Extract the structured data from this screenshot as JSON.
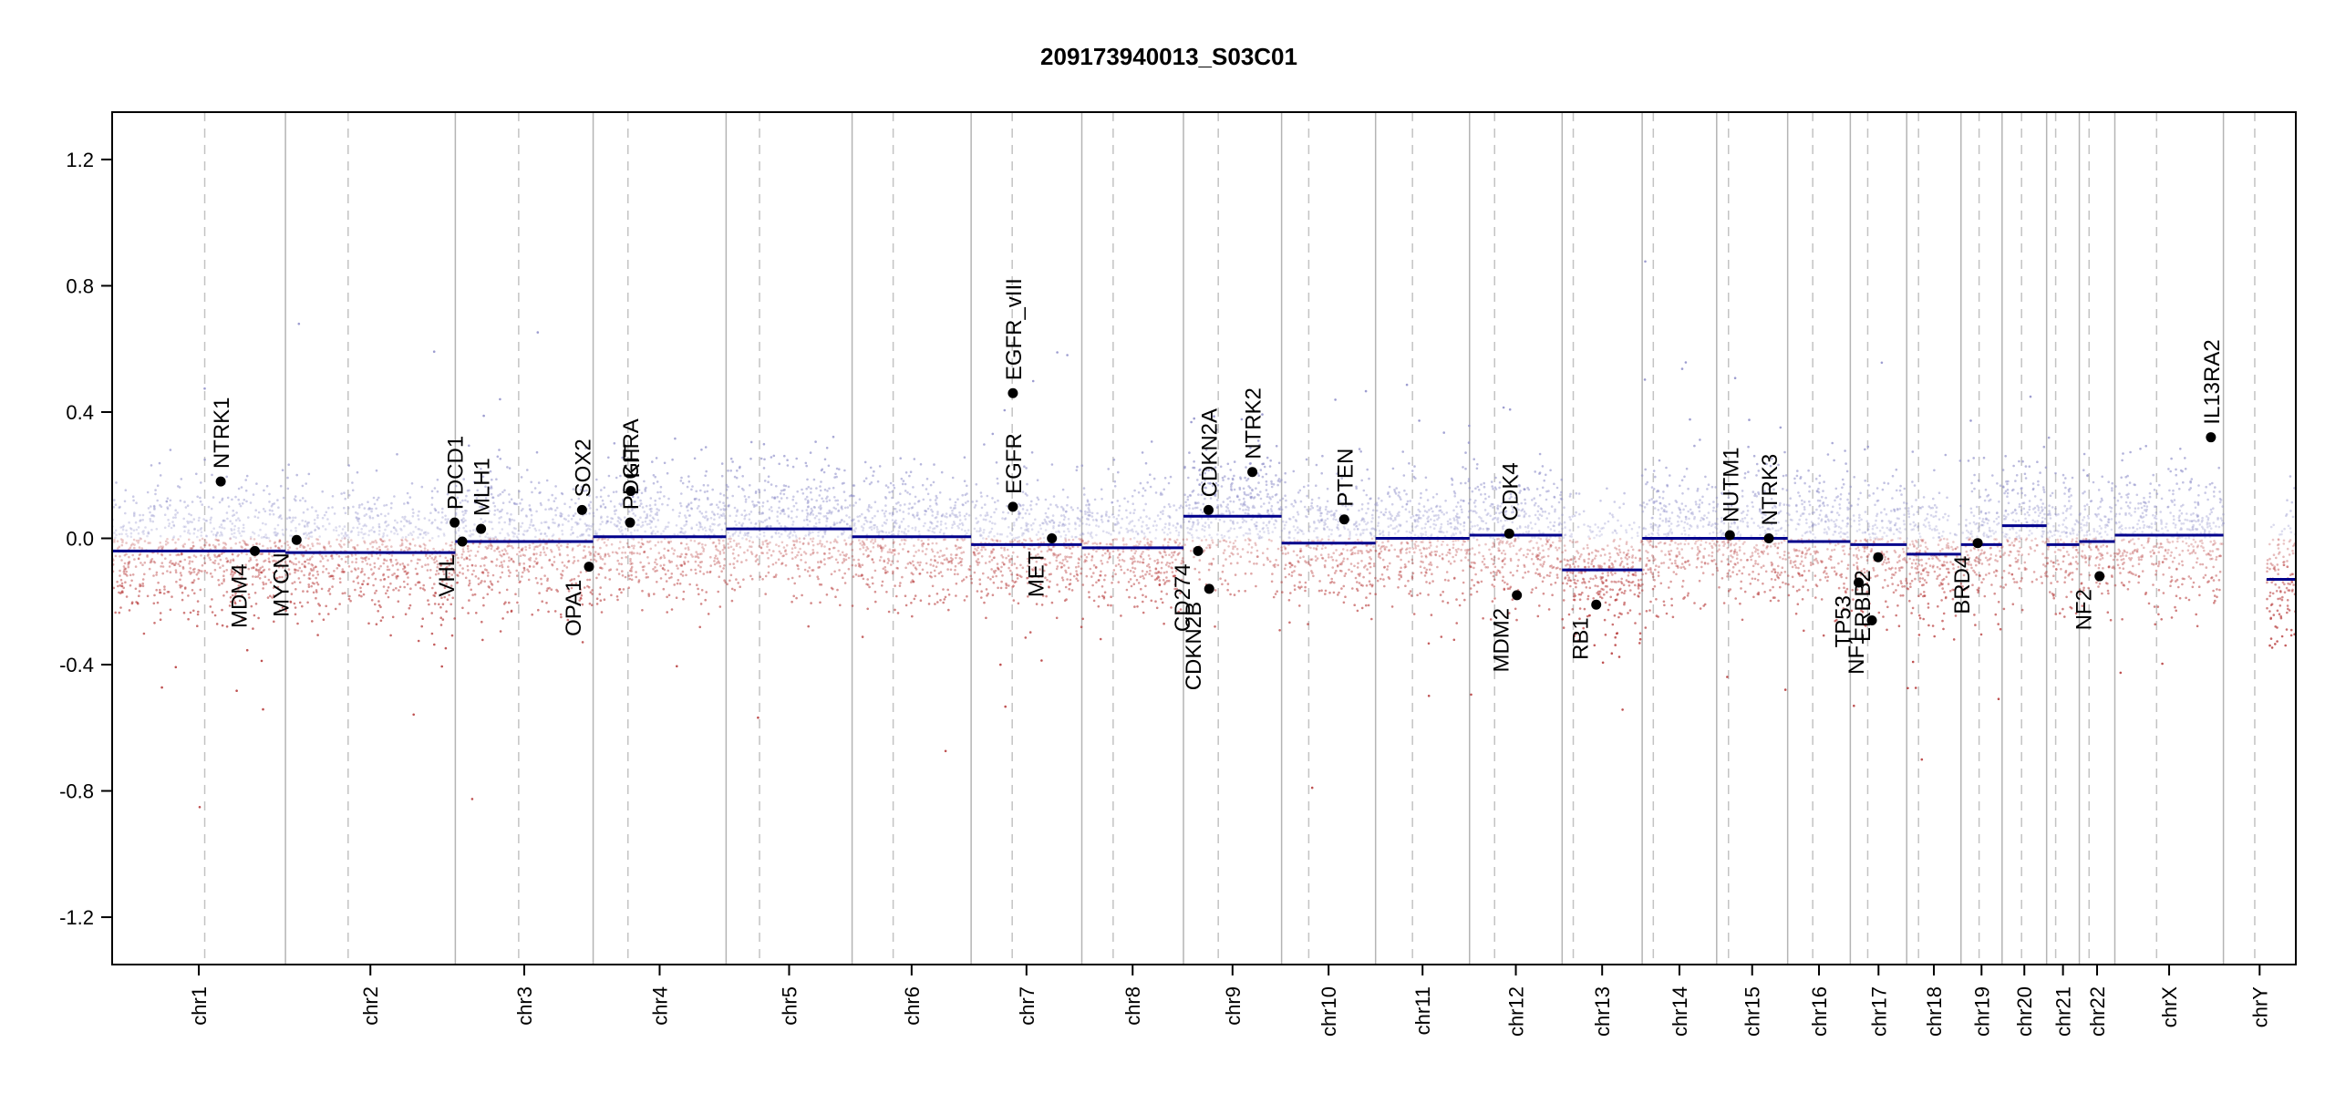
{
  "chart_data": {
    "type": "scatter",
    "title": "209173940013_S03C01",
    "xlabel": "",
    "ylabel": "",
    "ylim": [
      -1.35,
      1.35
    ],
    "xlim": [
      0,
      3137
    ],
    "y_ticks": [
      "1.2",
      "0.8",
      "0.4",
      "0.0",
      "-0.4",
      "-0.8",
      "-1.2"
    ],
    "y_tick_values": [
      1.2,
      0.8,
      0.4,
      0.0,
      -0.4,
      -0.8,
      -1.2
    ],
    "grid": false,
    "colors": {
      "segment": "#00008b",
      "gain_probe": "#8c8cc8",
      "loss_probe": "#b43232",
      "gene_point": "#000000"
    },
    "chromosomes": [
      {
        "name": "chr1",
        "start": 0,
        "end": 249,
        "centromere": 133
      },
      {
        "name": "chr2",
        "start": 249,
        "end": 493,
        "centromere": 339
      },
      {
        "name": "chr3",
        "start": 493,
        "end": 691,
        "centromere": 584
      },
      {
        "name": "chr4",
        "start": 691,
        "end": 882,
        "centromere": 741
      },
      {
        "name": "chr5",
        "start": 882,
        "end": 1063,
        "centromere": 930
      },
      {
        "name": "chr6",
        "start": 1063,
        "end": 1234,
        "centromere": 1122
      },
      {
        "name": "chr7",
        "start": 1234,
        "end": 1393,
        "centromere": 1293
      },
      {
        "name": "chr8",
        "start": 1393,
        "end": 1539,
        "centromere": 1438
      },
      {
        "name": "chr9",
        "start": 1539,
        "end": 1680,
        "centromere": 1589
      },
      {
        "name": "chr10",
        "start": 1680,
        "end": 1815,
        "centromere": 1719
      },
      {
        "name": "chr11",
        "start": 1815,
        "end": 1950,
        "centromere": 1868
      },
      {
        "name": "chr12",
        "start": 1950,
        "end": 2083,
        "centromere": 1986
      },
      {
        "name": "chr13",
        "start": 2083,
        "end": 2198,
        "centromere": 2099
      },
      {
        "name": "chr14",
        "start": 2198,
        "end": 2305,
        "centromere": 2214
      },
      {
        "name": "chr15",
        "start": 2305,
        "end": 2407,
        "centromere": 2322
      },
      {
        "name": "chr16",
        "start": 2407,
        "end": 2497,
        "centromere": 2443
      },
      {
        "name": "chr17",
        "start": 2497,
        "end": 2578,
        "centromere": 2522
      },
      {
        "name": "chr18",
        "start": 2578,
        "end": 2656,
        "centromere": 2595
      },
      {
        "name": "chr19",
        "start": 2656,
        "end": 2715,
        "centromere": 2682
      },
      {
        "name": "chr20",
        "start": 2715,
        "end": 2779,
        "centromere": 2743
      },
      {
        "name": "chr21",
        "start": 2779,
        "end": 2826,
        "centromere": 2792
      },
      {
        "name": "chr22",
        "start": 2826,
        "end": 2877,
        "centromere": 2840
      },
      {
        "name": "chrX",
        "start": 2877,
        "end": 3033,
        "centromere": 2937
      },
      {
        "name": "chrY",
        "start": 3033,
        "end": 3137,
        "centromere": 3078
      }
    ],
    "segments": [
      {
        "x0": 0,
        "x1": 249,
        "y": -0.04
      },
      {
        "x0": 249,
        "x1": 493,
        "y": -0.045
      },
      {
        "x0": 493,
        "x1": 691,
        "y": -0.01
      },
      {
        "x0": 691,
        "x1": 882,
        "y": 0.005
      },
      {
        "x0": 882,
        "x1": 1063,
        "y": 0.03
      },
      {
        "x0": 1063,
        "x1": 1234,
        "y": 0.005
      },
      {
        "x0": 1234,
        "x1": 1393,
        "y": -0.02
      },
      {
        "x0": 1393,
        "x1": 1539,
        "y": -0.03
      },
      {
        "x0": 1539,
        "x1": 1680,
        "y": 0.07
      },
      {
        "x0": 1680,
        "x1": 1815,
        "y": -0.015
      },
      {
        "x0": 1815,
        "x1": 1950,
        "y": 0.0
      },
      {
        "x0": 1950,
        "x1": 2083,
        "y": 0.01
      },
      {
        "x0": 2083,
        "x1": 2198,
        "y": -0.1
      },
      {
        "x0": 2198,
        "x1": 2305,
        "y": 0.0
      },
      {
        "x0": 2305,
        "x1": 2407,
        "y": 0.0
      },
      {
        "x0": 2407,
        "x1": 2497,
        "y": -0.01
      },
      {
        "x0": 2497,
        "x1": 2578,
        "y": -0.02
      },
      {
        "x0": 2578,
        "x1": 2656,
        "y": -0.05
      },
      {
        "x0": 2656,
        "x1": 2715,
        "y": -0.02
      },
      {
        "x0": 2715,
        "x1": 2779,
        "y": 0.04
      },
      {
        "x0": 2779,
        "x1": 2826,
        "y": -0.02
      },
      {
        "x0": 2826,
        "x1": 2877,
        "y": -0.01
      },
      {
        "x0": 2877,
        "x1": 3033,
        "y": 0.01
      },
      {
        "x0": 3095,
        "x1": 3137,
        "y": -0.13
      }
    ],
    "genes": [
      {
        "name": "NTRK1",
        "x": 156,
        "y": 0.18,
        "label_pos": "above"
      },
      {
        "name": "MDM4",
        "x": 205,
        "y": -0.04,
        "label_pos": "below"
      },
      {
        "name": "MYCN",
        "x": 265,
        "y": -0.005,
        "label_pos": "below"
      },
      {
        "name": "PDCD1",
        "x": 492,
        "y": 0.05,
        "label_pos": "above"
      },
      {
        "name": "VHL",
        "x": 503,
        "y": -0.01,
        "label_pos": "below"
      },
      {
        "name": "MLH1",
        "x": 530,
        "y": 0.03,
        "label_pos": "above"
      },
      {
        "name": "SOX2",
        "x": 675,
        "y": 0.09,
        "label_pos": "above"
      },
      {
        "name": "OPA1",
        "x": 685,
        "y": -0.09,
        "label_pos": "below"
      },
      {
        "name": "KIT",
        "x": 745,
        "y": 0.15,
        "label_pos": "above"
      },
      {
        "name": "PDGFRA",
        "x": 744,
        "y": 0.05,
        "label_pos": "above"
      },
      {
        "name": "EGFR_vIII",
        "x": 1294,
        "y": 0.46,
        "label_pos": "above"
      },
      {
        "name": "EGFR",
        "x": 1294,
        "y": 0.1,
        "label_pos": "above"
      },
      {
        "name": "MET",
        "x": 1350,
        "y": 0.0,
        "label_pos": "below"
      },
      {
        "name": "CDKN2A",
        "x": 1575,
        "y": 0.09,
        "label_pos": "above"
      },
      {
        "name": "CD274",
        "x": 1560,
        "y": -0.04,
        "label_pos": "below"
      },
      {
        "name": "CDKN2B",
        "x": 1576,
        "y": -0.16,
        "label_pos": "below"
      },
      {
        "name": "NTRK2",
        "x": 1638,
        "y": 0.21,
        "label_pos": "above"
      },
      {
        "name": "PTEN",
        "x": 1770,
        "y": 0.06,
        "label_pos": "above"
      },
      {
        "name": "CDK4",
        "x": 2007,
        "y": 0.015,
        "label_pos": "above"
      },
      {
        "name": "MDM2",
        "x": 2018,
        "y": -0.18,
        "label_pos": "below"
      },
      {
        "name": "RB1",
        "x": 2132,
        "y": -0.21,
        "label_pos": "below"
      },
      {
        "name": "NUTM1",
        "x": 2324,
        "y": 0.01,
        "label_pos": "above"
      },
      {
        "name": "NTRK3",
        "x": 2380,
        "y": 0.0,
        "label_pos": "above"
      },
      {
        "name": "TP53",
        "x": 2509,
        "y": -0.14,
        "label_pos": "below"
      },
      {
        "name": "NF1",
        "x": 2528,
        "y": -0.26,
        "label_pos": "below"
      },
      {
        "name": "ERBB2",
        "x": 2537,
        "y": -0.06,
        "label_pos": "below"
      },
      {
        "name": "BRD4",
        "x": 2680,
        "y": -0.015,
        "label_pos": "below"
      },
      {
        "name": "NF2",
        "x": 2855,
        "y": -0.12,
        "label_pos": "below"
      },
      {
        "name": "IL13RA2",
        "x": 3015,
        "y": 0.32,
        "label_pos": "above"
      }
    ]
  }
}
